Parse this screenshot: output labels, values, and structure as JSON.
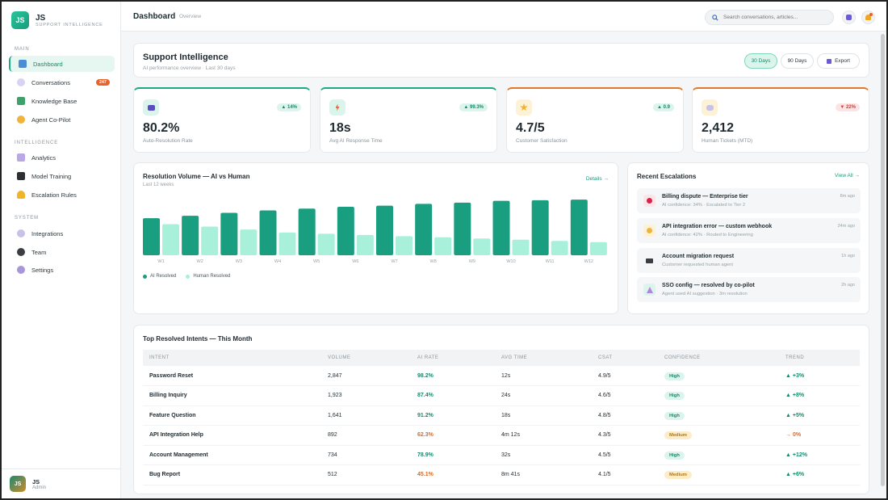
{
  "sidebar": {
    "logo": "JS",
    "brand_name": "JS",
    "brand_sub": "SUPPORT INTELLIGENCE",
    "sections": [
      {
        "label": "MAIN",
        "items": [
          {
            "label": "Dashboard",
            "icon": "bar-chart-icon",
            "active": true
          },
          {
            "label": "Conversations",
            "icon": "chat-icon",
            "badge": "247"
          },
          {
            "label": "Knowledge Base",
            "icon": "book-icon"
          },
          {
            "label": "Agent Co-Pilot",
            "icon": "sparkle-icon"
          }
        ]
      },
      {
        "label": "INTELLIGENCE",
        "items": [
          {
            "label": "Analytics",
            "icon": "trend-chart-icon"
          },
          {
            "label": "Model Training",
            "icon": "graduation-cap-icon"
          },
          {
            "label": "Escalation Rules",
            "icon": "bell-icon"
          }
        ]
      },
      {
        "label": "SYSTEM",
        "items": [
          {
            "label": "Integrations",
            "icon": "link-icon"
          },
          {
            "label": "Team",
            "icon": "team-icon"
          },
          {
            "label": "Settings",
            "icon": "gear-icon"
          }
        ]
      }
    ],
    "user": {
      "initials": "JS",
      "name": "JS",
      "role": "Admin"
    }
  },
  "topbar": {
    "title": "Dashboard",
    "breadcrumb": "Overview",
    "search_placeholder": "Search conversations, articles..."
  },
  "header": {
    "title": "Support Intelligence",
    "subtitle": "AI performance overview · Last 30 days",
    "ranges": [
      "30 Days",
      "90 Days"
    ],
    "selected_range": "30 Days",
    "export_label": "Export"
  },
  "kpis": [
    {
      "value": "80.2%",
      "label": "Auto-Resolution Rate",
      "delta": "▲ 14%",
      "direction": "up",
      "accent": "#1ea784",
      "icon": "robot-icon"
    },
    {
      "value": "18s",
      "label": "Avg AI Response Time",
      "delta": "▲ 99.3%",
      "direction": "up",
      "accent": "#1ea784",
      "icon": "lightning-icon"
    },
    {
      "value": "4.7/5",
      "label": "Customer Satisfaction",
      "delta": "▲ 0.9",
      "direction": "up",
      "accent": "#e07a2a",
      "icon": "star-icon"
    },
    {
      "value": "2,412",
      "label": "Human Tickets (MTD)",
      "delta": "▼ 22%",
      "direction": "down",
      "accent": "#e07a2a",
      "icon": "user-ticket-icon"
    }
  ],
  "resolution_chart": {
    "title": "Resolution Volume — AI vs Human",
    "subtitle": "Last 12 weeks",
    "details_link": "Details →"
  },
  "chart_data": {
    "type": "bar",
    "categories": [
      "W1",
      "W2",
      "W3",
      "W4",
      "W5",
      "W6",
      "W7",
      "W8",
      "W9",
      "W10",
      "W11",
      "W12"
    ],
    "series": [
      {
        "name": "AI Resolved",
        "color": "#1a9e80",
        "values": [
          62,
          66,
          71,
          75,
          78,
          81,
          83,
          86,
          88,
          91,
          92,
          93
        ]
      },
      {
        "name": "Human Resolved",
        "color": "#a8f0da",
        "values": [
          52,
          48,
          43,
          38,
          36,
          34,
          32,
          30,
          28,
          26,
          24,
          22
        ]
      }
    ],
    "ylim": [
      0,
      100
    ]
  },
  "escalations": {
    "title": "Recent Escalations",
    "view_all": "View All →",
    "items": [
      {
        "title": "Billing dispute — Enterprise tier",
        "sub": "AI confidence: 34% · Escalated to Tier 2",
        "time": "8m ago",
        "icon": "red-dot-icon",
        "bg": "#fde4e8"
      },
      {
        "title": "API integration error — custom webhook",
        "sub": "AI confidence: 42% · Routed to Engineering",
        "time": "24m ago",
        "icon": "yellow-dot-icon",
        "bg": "#fdf1d6"
      },
      {
        "title": "Account migration request",
        "sub": "Customer requested human agent",
        "time": "1h ago",
        "icon": "agent-icon",
        "bg": "#f4f6f7"
      },
      {
        "title": "SSO config — resolved by co-pilot",
        "sub": "Agent used AI suggestion · 3m resolution",
        "time": "2h ago",
        "icon": "party-icon",
        "bg": "#dcf5ec"
      }
    ]
  },
  "intents": {
    "title": "Top Resolved Intents — This Month",
    "columns": [
      "INTENT",
      "VOLUME",
      "AI RATE",
      "AVG TIME",
      "CSAT",
      "CONFIDENCE",
      "TREND"
    ],
    "rows": [
      {
        "intent": "Password Reset",
        "volume": "2,847",
        "rate": "98.2%",
        "rate_color": "green",
        "time": "12s",
        "csat": "4.9/5",
        "conf": "High",
        "trend": "▲ +3%",
        "trend_dir": "up"
      },
      {
        "intent": "Billing Inquiry",
        "volume": "1,923",
        "rate": "87.4%",
        "rate_color": "green",
        "time": "24s",
        "csat": "4.6/5",
        "conf": "High",
        "trend": "▲ +8%",
        "trend_dir": "up"
      },
      {
        "intent": "Feature Question",
        "volume": "1,641",
        "rate": "91.2%",
        "rate_color": "green",
        "time": "18s",
        "csat": "4.8/5",
        "conf": "High",
        "trend": "▲ +5%",
        "trend_dir": "up"
      },
      {
        "intent": "API Integration Help",
        "volume": "892",
        "rate": "62.3%",
        "rate_color": "orange",
        "time": "4m 12s",
        "csat": "4.3/5",
        "conf": "Medium",
        "trend": "→ 0%",
        "trend_dir": "flat"
      },
      {
        "intent": "Account Management",
        "volume": "734",
        "rate": "78.9%",
        "rate_color": "green",
        "time": "32s",
        "csat": "4.5/5",
        "conf": "High",
        "trend": "▲ +12%",
        "trend_dir": "up"
      },
      {
        "intent": "Bug Report",
        "volume": "512",
        "rate": "45.1%",
        "rate_color": "orange",
        "time": "8m 41s",
        "csat": "4.1/5",
        "conf": "Medium",
        "trend": "▲ +6%",
        "trend_dir": "up"
      }
    ]
  }
}
